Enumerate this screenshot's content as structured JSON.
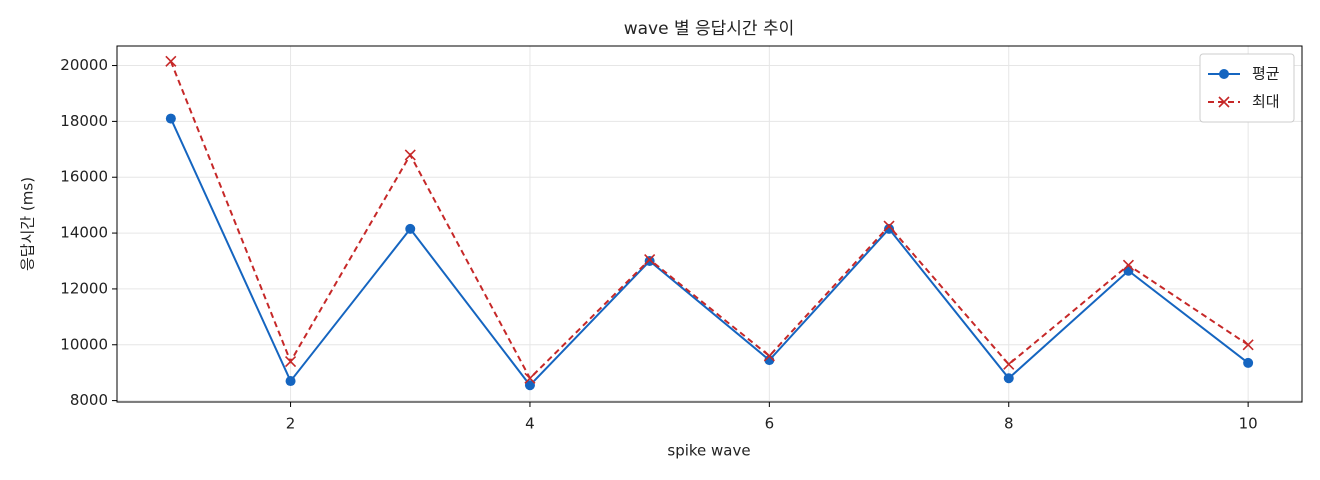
{
  "chart_data": {
    "type": "line",
    "title": "wave 별 응답시간 추이",
    "x_label": "spike wave",
    "y_label": "응답시간 (ms)",
    "x": [
      1,
      2,
      3,
      4,
      5,
      6,
      7,
      8,
      9,
      10
    ],
    "series": [
      {
        "name": "평균",
        "color": "#1565c0",
        "marker": "o",
        "dash": "solid",
        "values": [
          18100,
          8700,
          14150,
          8550,
          13000,
          9450,
          14150,
          8800,
          12650,
          9350
        ]
      },
      {
        "name": "최대",
        "color": "#c62828",
        "marker": "x",
        "dash": "dashed",
        "values": [
          20150,
          9400,
          16800,
          8800,
          13050,
          9600,
          14250,
          9300,
          12850,
          10000
        ]
      }
    ],
    "xlim": [
      0.55,
      10.45
    ],
    "ylim": [
      7950,
      20700
    ],
    "xticks": [
      2,
      4,
      6,
      8,
      10
    ],
    "yticks": [
      8000,
      10000,
      12000,
      14000,
      16000,
      18000,
      20000
    ],
    "grid": true,
    "legend": "upper right"
  }
}
